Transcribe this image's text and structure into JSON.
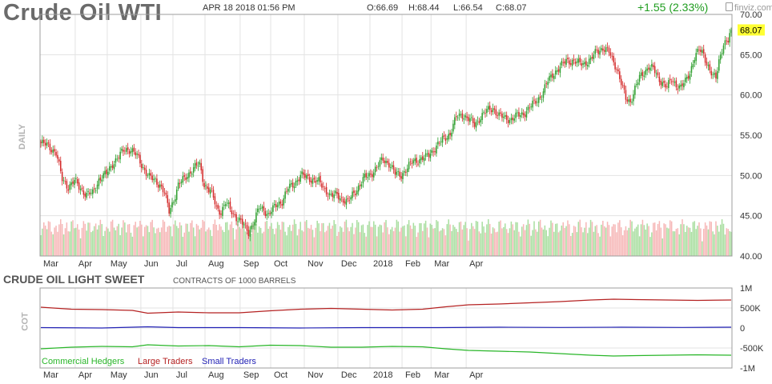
{
  "header": {
    "title": "Crude Oil WTI",
    "date": "APR 18 2018 01:56 PM",
    "open": "O:66.69",
    "high": "H:68.44",
    "low": "L:66.54",
    "close": "C:68.07",
    "change": "+1.55 (2.33%)",
    "logo": "finviz.com",
    "logo_icon": "finviz-logo-icon"
  },
  "colors": {
    "up": "#2e9e2e",
    "down": "#d42a2a",
    "vol_up": "#a9dea0",
    "vol_down": "#f6b7b7",
    "commercial": "#29b629",
    "large": "#b52222",
    "small": "#2222b5",
    "last_price_bg": "#ffff33"
  },
  "chart_data": [
    {
      "type": "candlestick",
      "title": "Crude Oil WTI",
      "ylabel": "DAILY",
      "ylim": [
        40,
        70
      ],
      "y_ticks": [
        "70.00",
        "65.00",
        "60.00",
        "55.00",
        "50.00",
        "45.00",
        "40.00"
      ],
      "x_ticks": [
        "Mar",
        "Apr",
        "May",
        "Jun",
        "Jul",
        "Aug",
        "Sep",
        "Oct",
        "Nov",
        "Dec",
        "2018",
        "Feb",
        "Mar",
        "Apr"
      ],
      "last_price": "68.07",
      "close_anchors": [
        [
          0,
          54.0
        ],
        [
          5,
          53.7
        ],
        [
          10,
          52.8
        ],
        [
          14,
          49.5
        ],
        [
          18,
          48.6
        ],
        [
          22,
          49.3
        ],
        [
          27,
          48.2
        ],
        [
          30,
          47.6
        ],
        [
          34,
          47.8
        ],
        [
          38,
          49.5
        ],
        [
          43,
          50.2
        ],
        [
          47,
          51.5
        ],
        [
          51,
          52.3
        ],
        [
          55,
          53.3
        ],
        [
          59,
          53.2
        ],
        [
          63,
          52.4
        ],
        [
          67,
          51.0
        ],
        [
          71,
          49.8
        ],
        [
          75,
          49.3
        ],
        [
          78,
          48.9
        ],
        [
          81,
          47.8
        ],
        [
          84,
          45.5
        ],
        [
          87,
          47.0
        ],
        [
          90,
          48.8
        ],
        [
          94,
          49.6
        ],
        [
          98,
          50.5
        ],
        [
          102,
          51.2
        ],
        [
          104,
          51.3
        ],
        [
          107,
          48.9
        ],
        [
          110,
          48.2
        ],
        [
          112,
          47.8
        ],
        [
          115,
          46.0
        ],
        [
          118,
          45.5
        ],
        [
          121,
          46.6
        ],
        [
          124,
          45.8
        ],
        [
          128,
          44.8
        ],
        [
          132,
          44.0
        ],
        [
          136,
          43.0
        ],
        [
          140,
          44.4
        ],
        [
          143,
          46.0
        ],
        [
          146,
          45.8
        ],
        [
          149,
          45.1
        ],
        [
          152,
          45.8
        ],
        [
          155,
          46.5
        ],
        [
          158,
          46.8
        ],
        [
          162,
          48.4
        ],
        [
          166,
          49.0
        ],
        [
          170,
          50.0
        ],
        [
          174,
          49.8
        ],
        [
          178,
          49.5
        ],
        [
          182,
          49.2
        ],
        [
          186,
          48.3
        ],
        [
          190,
          47.4
        ],
        [
          194,
          47.6
        ],
        [
          198,
          47.0
        ],
        [
          201,
          46.6
        ],
        [
          204,
          47.6
        ],
        [
          208,
          48.6
        ],
        [
          212,
          49.7
        ],
        [
          216,
          50.2
        ],
        [
          220,
          51.0
        ],
        [
          224,
          52.0
        ],
        [
          228,
          51.5
        ],
        [
          232,
          50.2
        ],
        [
          236,
          50.1
        ],
        [
          240,
          50.9
        ],
        [
          244,
          51.8
        ],
        [
          248,
          52.0
        ],
        [
          252,
          52.2
        ],
        [
          256,
          53.0
        ],
        [
          260,
          53.8
        ],
        [
          264,
          54.6
        ],
        [
          268,
          55.2
        ],
        [
          272,
          57.2
        ],
        [
          276,
          57.6
        ],
        [
          280,
          57.0
        ],
        [
          284,
          56.3
        ],
        [
          288,
          57.3
        ],
        [
          292,
          58.0
        ],
        [
          296,
          58.4
        ],
        [
          300,
          57.4
        ],
        [
          304,
          57.1
        ],
        [
          308,
          57.0
        ],
        [
          312,
          57.4
        ],
        [
          316,
          57.7
        ],
        [
          320,
          58.4
        ],
        [
          324,
          59.2
        ],
        [
          328,
          60.0
        ],
        [
          332,
          61.7
        ],
        [
          336,
          62.8
        ],
        [
          340,
          63.4
        ],
        [
          344,
          64.3
        ],
        [
          348,
          64.2
        ],
        [
          352,
          63.9
        ],
        [
          356,
          64.0
        ],
        [
          360,
          64.3
        ],
        [
          364,
          65.5
        ],
        [
          368,
          65.8
        ],
        [
          372,
          65.3
        ],
        [
          374,
          64.5
        ],
        [
          377,
          63.4
        ],
        [
          380,
          61.4
        ],
        [
          383,
          59.5
        ],
        [
          386,
          59.2
        ],
        [
          389,
          60.8
        ],
        [
          392,
          62.1
        ],
        [
          395,
          62.8
        ],
        [
          398,
          63.6
        ],
        [
          401,
          63.2
        ],
        [
          404,
          62.1
        ],
        [
          407,
          61.6
        ],
        [
          410,
          61.0
        ],
        [
          413,
          61.8
        ],
        [
          416,
          61.3
        ],
        [
          419,
          61.0
        ],
        [
          422,
          61.6
        ],
        [
          425,
          62.8
        ],
        [
          428,
          64.8
        ],
        [
          431,
          65.5
        ],
        [
          434,
          65.0
        ],
        [
          436,
          64.0
        ],
        [
          438,
          63.2
        ],
        [
          440,
          62.3
        ],
        [
          442,
          62.0
        ],
        [
          444,
          64.2
        ],
        [
          447,
          66.5
        ],
        [
          450,
          66.7
        ],
        [
          452,
          68.07
        ]
      ]
    },
    {
      "type": "line",
      "title": "CRUDE OIL LIGHT SWEET",
      "subtitle": "CONTRACTS OF 1000 BARRELS",
      "ylabel": "COT",
      "ylim": [
        -1000000,
        1000000
      ],
      "y_ticks": [
        "1M",
        "500K",
        "0",
        "-500K",
        "-1M"
      ],
      "x_ticks": [
        "Mar",
        "Apr",
        "May",
        "Jun",
        "Jul",
        "Aug",
        "Sep",
        "Oct",
        "Nov",
        "Dec",
        "2018",
        "Feb",
        "Mar",
        "Apr"
      ],
      "series": [
        {
          "name": "Commercial Hedgers",
          "color": "commercial",
          "points": [
            [
              0,
              -520000
            ],
            [
              20,
              -480000
            ],
            [
              40,
              -460000
            ],
            [
              60,
              -470000
            ],
            [
              70,
              -420000
            ],
            [
              90,
              -450000
            ],
            [
              110,
              -440000
            ],
            [
              130,
              -470000
            ],
            [
              150,
              -430000
            ],
            [
              170,
              -440000
            ],
            [
              190,
              -480000
            ],
            [
              210,
              -480000
            ],
            [
              230,
              -460000
            ],
            [
              250,
              -470000
            ],
            [
              265,
              -520000
            ],
            [
              280,
              -560000
            ],
            [
              300,
              -580000
            ],
            [
              320,
              -600000
            ],
            [
              340,
              -640000
            ],
            [
              360,
              -680000
            ],
            [
              375,
              -700000
            ],
            [
              390,
              -690000
            ],
            [
              410,
              -680000
            ],
            [
              430,
              -670000
            ],
            [
              452,
              -680000
            ]
          ]
        },
        {
          "name": "Large Traders",
          "color": "large",
          "points": [
            [
              0,
              520000
            ],
            [
              20,
              470000
            ],
            [
              40,
              460000
            ],
            [
              60,
              440000
            ],
            [
              70,
              370000
            ],
            [
              90,
              400000
            ],
            [
              110,
              380000
            ],
            [
              130,
              380000
            ],
            [
              150,
              430000
            ],
            [
              170,
              470000
            ],
            [
              190,
              490000
            ],
            [
              210,
              470000
            ],
            [
              230,
              450000
            ],
            [
              250,
              470000
            ],
            [
              265,
              530000
            ],
            [
              280,
              580000
            ],
            [
              300,
              600000
            ],
            [
              320,
              630000
            ],
            [
              340,
              660000
            ],
            [
              360,
              700000
            ],
            [
              375,
              720000
            ],
            [
              390,
              710000
            ],
            [
              410,
              700000
            ],
            [
              430,
              690000
            ],
            [
              452,
              700000
            ]
          ]
        },
        {
          "name": "Small Traders",
          "color": "small",
          "points": [
            [
              0,
              10000
            ],
            [
              40,
              0
            ],
            [
              70,
              30000
            ],
            [
              90,
              10000
            ],
            [
              130,
              10000
            ],
            [
              170,
              0
            ],
            [
              210,
              10000
            ],
            [
              260,
              10000
            ],
            [
              300,
              20000
            ],
            [
              340,
              15000
            ],
            [
              380,
              20000
            ],
            [
              420,
              15000
            ],
            [
              452,
              20000
            ]
          ]
        }
      ]
    }
  ]
}
